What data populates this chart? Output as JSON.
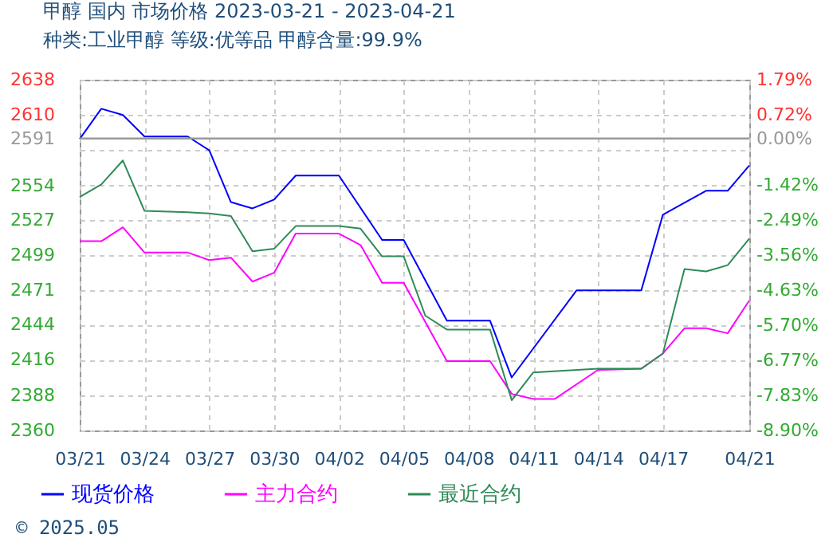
{
  "chart_data": {
    "type": "line",
    "title": "甲醇  国内  市场价格  2023-03-21 - 2023-04-21",
    "subtitle": "种类:工业甲醇  等级:优等品  甲醇含量:99.9%",
    "xlim": [
      "2023-03-21",
      "2023-04-21"
    ],
    "xticks": [
      {
        "value": "2023-03-21",
        "label": "03/21"
      },
      {
        "value": "2023-03-24",
        "label": "03/24"
      },
      {
        "value": "2023-03-27",
        "label": "03/27"
      },
      {
        "value": "2023-03-30",
        "label": "03/30"
      },
      {
        "value": "2023-04-02",
        "label": "04/02"
      },
      {
        "value": "2023-04-05",
        "label": "04/05"
      },
      {
        "value": "2023-04-08",
        "label": "04/08"
      },
      {
        "value": "2023-04-11",
        "label": "04/11"
      },
      {
        "value": "2023-04-14",
        "label": "04/14"
      },
      {
        "value": "2023-04-17",
        "label": "04/17"
      },
      {
        "value": "2023-04-21",
        "label": "04/21"
      }
    ],
    "ylim": [
      2360,
      2638
    ],
    "yticks": [
      2360,
      2388,
      2416,
      2444,
      2471,
      2499,
      2527,
      2554,
      {
        "value": 2582,
        "label": null
      },
      2591,
      2610,
      2638
    ],
    "y2lim": [
      -8.9,
      1.79
    ],
    "y2ticks": [
      {
        "value": -8.9,
        "label": "-8.90%"
      },
      {
        "value": -7.83,
        "label": "-7.83%"
      },
      {
        "value": -6.77,
        "label": "-6.77%"
      },
      {
        "value": -5.7,
        "label": "-5.70%"
      },
      {
        "value": -4.63,
        "label": "-4.63%"
      },
      {
        "value": -3.56,
        "label": "-3.56%"
      },
      {
        "value": -2.49,
        "label": "-2.49%"
      },
      {
        "value": -1.42,
        "label": "-1.42%"
      },
      {
        "value": -0.35,
        "label": null
      },
      {
        "value": 0,
        "label": "0.00%"
      },
      {
        "value": 0.72,
        "label": "0.72%"
      },
      {
        "value": 1.79,
        "label": "1.79%"
      }
    ],
    "ref_lines": [
      {
        "axis": "y2",
        "value": 0,
        "color": "#999999",
        "line_style": "solid"
      }
    ],
    "grid": true,
    "legend": "bottom",
    "marker": "none",
    "line_style": "solid",
    "annotations": [
      "© 2025.05"
    ],
    "series": [
      {
        "name": "现货价格",
        "color": "#0000ff",
        "x": [
          "2023-03-21",
          "2023-03-22",
          "2023-03-23",
          "2023-03-24",
          "2023-03-26",
          "2023-03-27",
          "2023-03-28",
          "2023-03-29",
          "2023-03-30",
          "2023-03-31",
          "2023-04-02",
          "2023-04-04",
          "2023-04-05",
          "2023-04-07",
          "2023-04-09",
          "2023-04-10",
          "2023-04-13",
          "2023-04-16",
          "2023-04-17",
          "2023-04-19",
          "2023-04-20",
          "2023-04-21"
        ],
        "values": [
          2591,
          2615,
          2610,
          2593,
          2593,
          2582,
          2541,
          2536,
          2543,
          2562,
          2562,
          2511,
          2511,
          2447,
          2447,
          2402,
          2471,
          2471,
          2531,
          2550,
          2550,
          2570
        ]
      },
      {
        "name": "主力合约",
        "color": "#ff00ff",
        "x": [
          "2023-03-21",
          "2023-03-22",
          "2023-03-23",
          "2023-03-24",
          "2023-03-26",
          "2023-03-27",
          "2023-03-28",
          "2023-03-29",
          "2023-03-30",
          "2023-03-31",
          "2023-04-02",
          "2023-04-03",
          "2023-04-04",
          "2023-04-05",
          "2023-04-07",
          "2023-04-09",
          "2023-04-10",
          "2023-04-11",
          "2023-04-12",
          "2023-04-14",
          "2023-04-16",
          "2023-04-17",
          "2023-04-18",
          "2023-04-19",
          "2023-04-20",
          "2023-04-21"
        ],
        "values": [
          2510,
          2510,
          2521,
          2501,
          2501,
          2495,
          2497,
          2478,
          2485,
          2516,
          2516,
          2507,
          2477,
          2477,
          2415,
          2415,
          2389,
          2385,
          2385,
          2408,
          2409,
          2421,
          2441,
          2441,
          2437,
          2463
        ]
      },
      {
        "name": "最近合约",
        "color": "#2e8b57",
        "x": [
          "2023-03-21",
          "2023-03-22",
          "2023-03-23",
          "2023-03-24",
          "2023-03-26",
          "2023-03-27",
          "2023-03-28",
          "2023-03-29",
          "2023-03-30",
          "2023-03-31",
          "2023-04-02",
          "2023-04-03",
          "2023-04-04",
          "2023-04-05",
          "2023-04-06",
          "2023-04-07",
          "2023-04-09",
          "2023-04-10",
          "2023-04-11",
          "2023-04-14",
          "2023-04-16",
          "2023-04-17",
          "2023-04-18",
          "2023-04-19",
          "2023-04-20",
          "2023-04-21"
        ],
        "values": [
          2545,
          2555,
          2574,
          2534,
          2533,
          2532,
          2530,
          2502,
          2504,
          2522,
          2522,
          2520,
          2498,
          2498,
          2451,
          2440,
          2440,
          2384,
          2406,
          2409,
          2409,
          2421,
          2488,
          2486,
          2491,
          2512
        ]
      }
    ]
  }
}
